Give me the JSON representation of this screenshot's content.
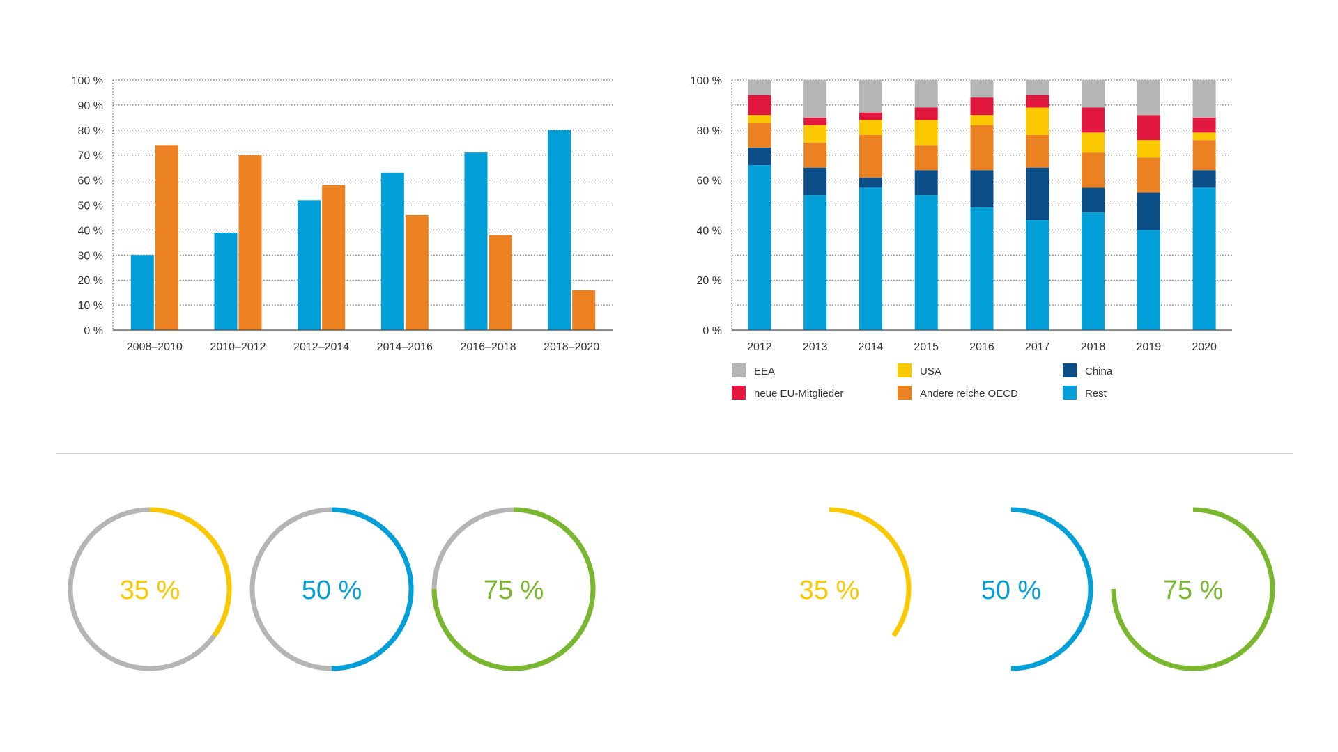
{
  "colors": {
    "blue": "#029fd8",
    "orange": "#ec8121",
    "gray": "#b5b5b5",
    "red": "#e2173d",
    "yellow": "#fbc800",
    "navy": "#0c4e88",
    "green": "#79b82e",
    "divider": "#bdbdbd"
  },
  "chart_data": [
    {
      "type": "bar",
      "categories": [
        "2008–2010",
        "2010–2012",
        "2012–2014",
        "2014–2016",
        "2016–2018",
        "2018–2020"
      ],
      "series": [
        {
          "color": "blue",
          "values": [
            30,
            39,
            52,
            63,
            71,
            80
          ]
        },
        {
          "color": "orange",
          "values": [
            74,
            70,
            58,
            46,
            38,
            16
          ]
        }
      ],
      "yticks": [
        "0 %",
        "10 %",
        "20 %",
        "30 %",
        "40 %",
        "50 %",
        "60 %",
        "70 %",
        "80 %",
        "90 %",
        "100 %"
      ],
      "ylim": [
        0,
        100
      ],
      "grid": true,
      "grid_style": "dotted",
      "title": "",
      "xlabel": "",
      "ylabel": ""
    },
    {
      "type": "bar",
      "stacked": true,
      "categories": [
        "2012",
        "2013",
        "2014",
        "2015",
        "2016",
        "2017",
        "2018",
        "2019",
        "2020"
      ],
      "series": [
        {
          "name": "Rest",
          "color": "blue",
          "values": [
            66,
            54,
            57,
            54,
            49,
            44,
            47,
            40,
            57
          ]
        },
        {
          "name": "China",
          "color": "navy",
          "values": [
            7,
            11,
            4,
            10,
            15,
            21,
            10,
            15,
            7
          ]
        },
        {
          "name": "Andere reiche OECD",
          "color": "orange",
          "values": [
            10,
            10,
            17,
            10,
            18,
            13,
            14,
            14,
            12
          ]
        },
        {
          "name": "USA",
          "color": "yellow",
          "values": [
            3,
            7,
            6,
            10,
            4,
            11,
            8,
            7,
            3
          ]
        },
        {
          "name": "neue EU-Mitglieder",
          "color": "red",
          "values": [
            8,
            3,
            3,
            5,
            7,
            5,
            10,
            10,
            6
          ]
        },
        {
          "name": "EEA",
          "color": "gray",
          "values": [
            6,
            15,
            13,
            11,
            7,
            6,
            11,
            14,
            15
          ]
        }
      ],
      "yticks": [
        "0 %",
        "20 %",
        "40 %",
        "60 %",
        "80 %",
        "100 %"
      ],
      "ylim": [
        0,
        100
      ],
      "grid": true,
      "grid_style": "dotted",
      "legend": {
        "placement": "bottom",
        "order": [
          "EEA",
          "USA",
          "China",
          "neue EU-Mitglieder",
          "Andere reiche OECD",
          "Rest"
        ]
      },
      "title": "",
      "xlabel": "",
      "ylabel": ""
    },
    {
      "type": "gauge",
      "style": "ring-with-track",
      "items": [
        {
          "label": "35 %",
          "value": 0.35,
          "color": "yellow"
        },
        {
          "label": "50 %",
          "value": 0.5,
          "color": "blue"
        },
        {
          "label": "75 %",
          "value": 0.75,
          "color": "green"
        }
      ],
      "track_color": "gray"
    },
    {
      "type": "gauge",
      "style": "arc-only",
      "items": [
        {
          "label": "35 %",
          "value": 0.35,
          "color": "yellow"
        },
        {
          "label": "50 %",
          "value": 0.5,
          "color": "blue"
        },
        {
          "label": "75 %",
          "value": 0.75,
          "color": "green"
        }
      ]
    }
  ]
}
